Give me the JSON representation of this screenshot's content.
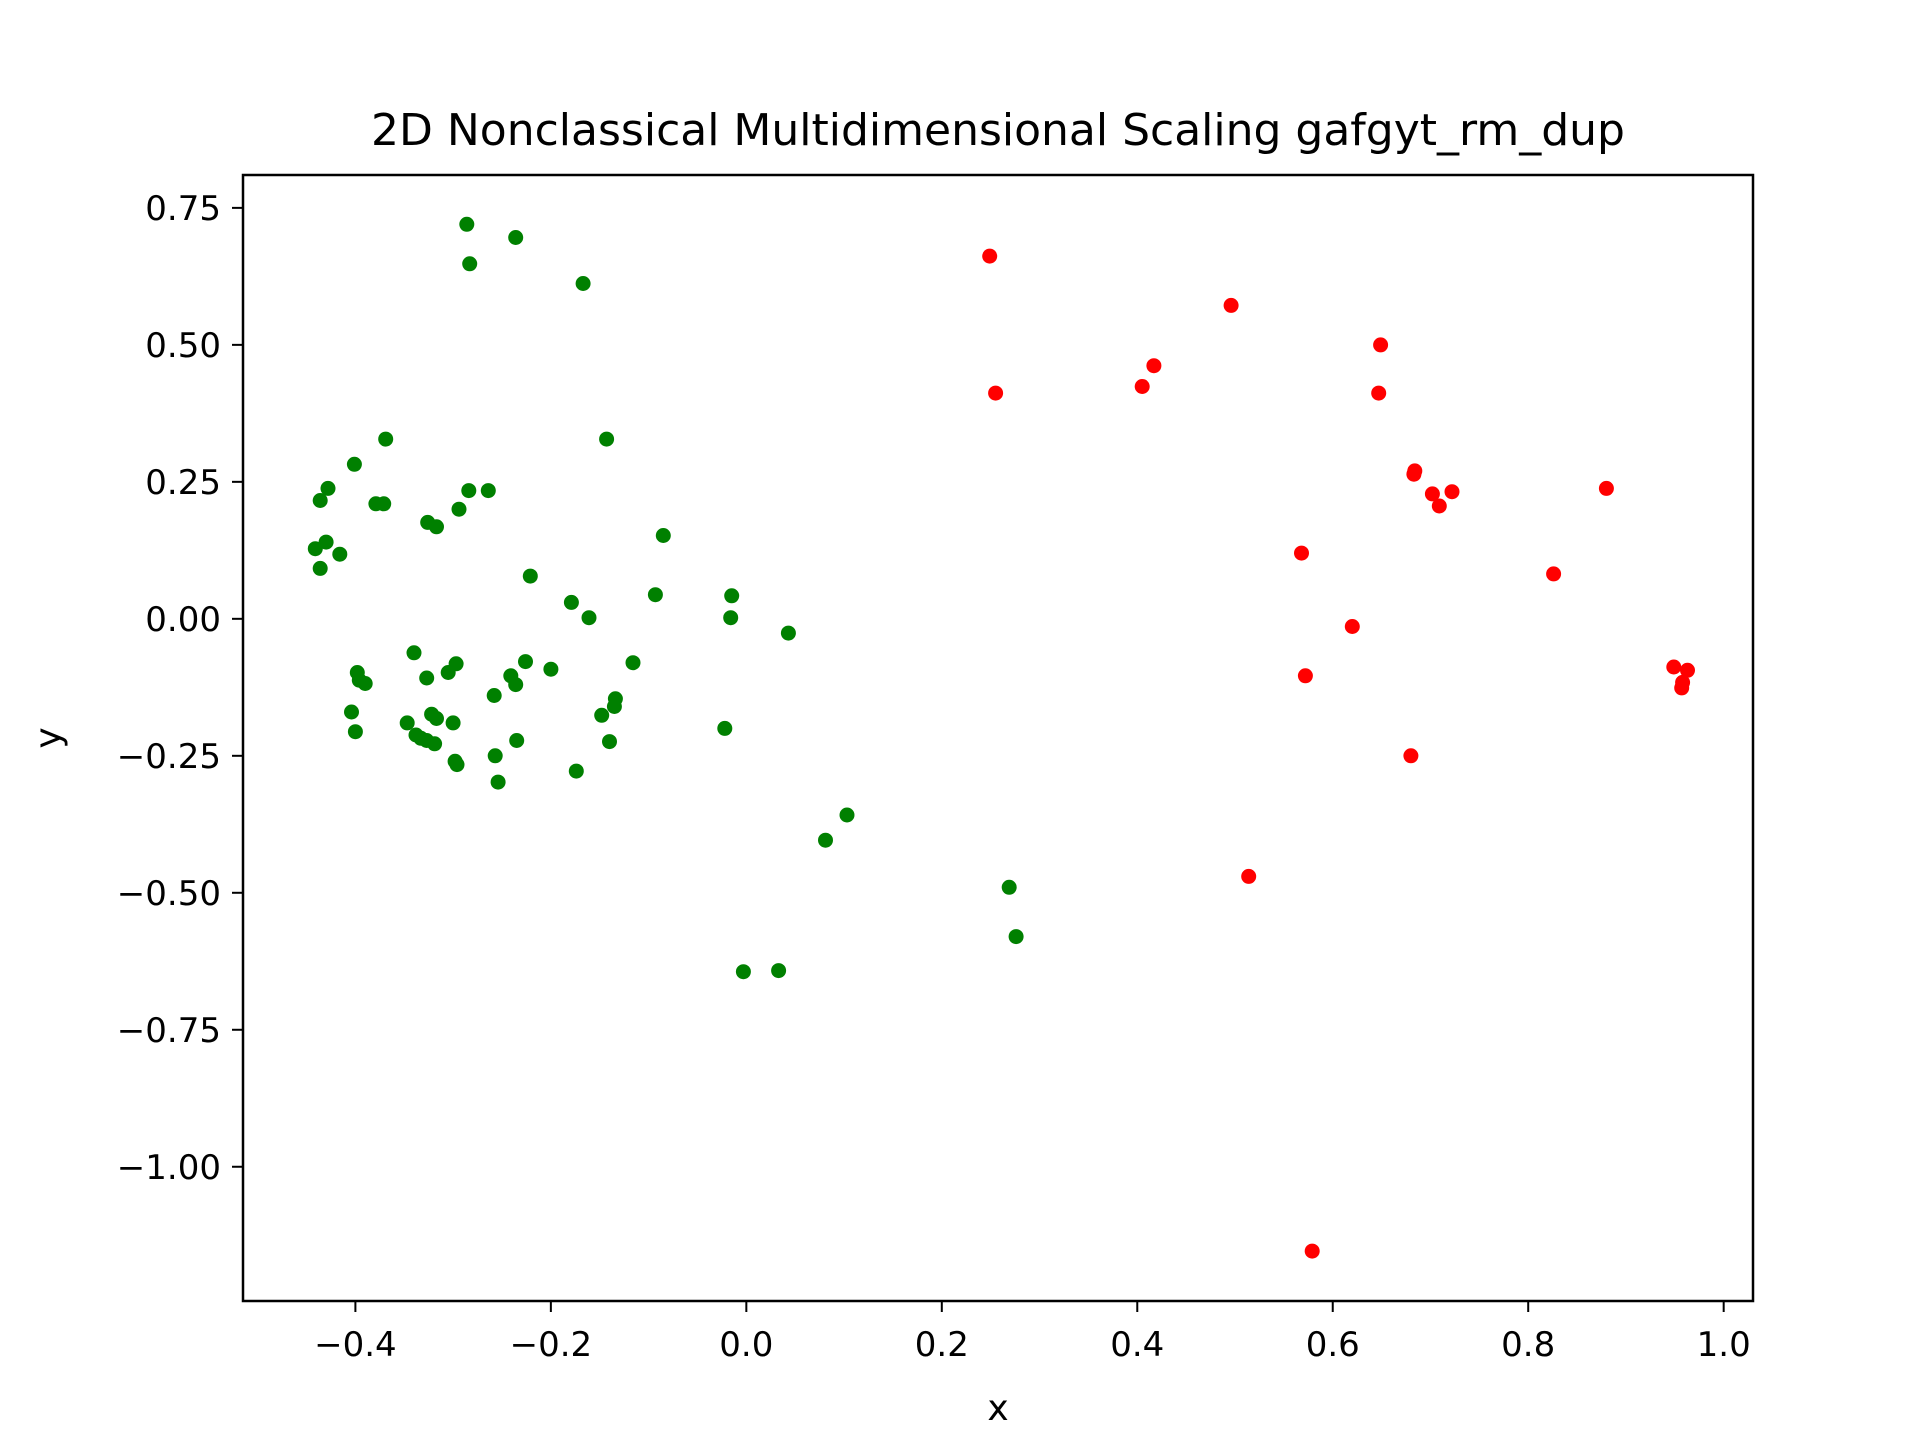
{
  "chart_data": {
    "type": "scatter",
    "title": "2D Nonclassical Multidimensional Scaling gafgyt_rm_dup",
    "xlabel": "x",
    "ylabel": "y",
    "xlim": [
      -0.515,
      1.03
    ],
    "ylim": [
      -1.245,
      0.81
    ],
    "xticks": [
      -0.4,
      -0.2,
      0.0,
      0.2,
      0.4,
      0.6,
      0.8,
      1.0
    ],
    "xtick_labels": [
      "−0.4",
      "−0.2",
      "0.0",
      "0.2",
      "0.4",
      "0.6",
      "0.8",
      "1.0"
    ],
    "yticks": [
      0.75,
      0.5,
      0.25,
      0.0,
      -0.25,
      -0.5,
      -0.75,
      -1.0
    ],
    "ytick_labels": [
      "0.75",
      "0.50",
      "0.25",
      "0.00",
      "−0.25",
      "−0.50",
      "−0.75",
      "−1.00"
    ],
    "grid": false,
    "series": [
      {
        "color": "#008000",
        "points": [
          [
            -0.286,
            0.72
          ],
          [
            -0.236,
            0.696
          ],
          [
            -0.283,
            0.648
          ],
          [
            -0.167,
            0.612
          ],
          [
            -0.369,
            0.328
          ],
          [
            -0.143,
            0.328
          ],
          [
            -0.401,
            0.282
          ],
          [
            -0.428,
            0.238
          ],
          [
            -0.436,
            0.216
          ],
          [
            -0.379,
            0.21
          ],
          [
            -0.371,
            0.21
          ],
          [
            -0.284,
            0.234
          ],
          [
            -0.264,
            0.234
          ],
          [
            -0.326,
            0.176
          ],
          [
            -0.317,
            0.168
          ],
          [
            -0.294,
            0.2
          ],
          [
            -0.43,
            0.14
          ],
          [
            -0.441,
            0.128
          ],
          [
            -0.416,
            0.118
          ],
          [
            -0.436,
            0.092
          ],
          [
            -0.085,
            0.152
          ],
          [
            -0.221,
            0.078
          ],
          [
            -0.179,
            0.03
          ],
          [
            -0.161,
            0.002
          ],
          [
            -0.093,
            0.044
          ],
          [
            -0.015,
            0.042
          ],
          [
            -0.016,
            0.002
          ],
          [
            0.043,
            -0.026
          ],
          [
            -0.34,
            -0.062
          ],
          [
            -0.297,
            -0.082
          ],
          [
            -0.305,
            -0.098
          ],
          [
            -0.327,
            -0.108
          ],
          [
            -0.398,
            -0.098
          ],
          [
            -0.396,
            -0.112
          ],
          [
            -0.39,
            -0.118
          ],
          [
            -0.226,
            -0.078
          ],
          [
            -0.2,
            -0.092
          ],
          [
            -0.241,
            -0.104
          ],
          [
            -0.236,
            -0.12
          ],
          [
            -0.116,
            -0.08
          ],
          [
            -0.134,
            -0.146
          ],
          [
            -0.135,
            -0.16
          ],
          [
            -0.148,
            -0.176
          ],
          [
            -0.258,
            -0.14
          ],
          [
            -0.404,
            -0.17
          ],
          [
            -0.4,
            -0.206
          ],
          [
            -0.347,
            -0.19
          ],
          [
            -0.322,
            -0.174
          ],
          [
            -0.317,
            -0.182
          ],
          [
            -0.3,
            -0.19
          ],
          [
            -0.338,
            -0.212
          ],
          [
            -0.333,
            -0.218
          ],
          [
            -0.327,
            -0.222
          ],
          [
            -0.319,
            -0.228
          ],
          [
            -0.235,
            -0.222
          ],
          [
            -0.14,
            -0.224
          ],
          [
            -0.022,
            -0.2
          ],
          [
            -0.257,
            -0.25
          ],
          [
            -0.298,
            -0.26
          ],
          [
            -0.296,
            -0.266
          ],
          [
            -0.174,
            -0.278
          ],
          [
            -0.254,
            -0.298
          ],
          [
            0.103,
            -0.358
          ],
          [
            0.081,
            -0.404
          ],
          [
            0.269,
            -0.49
          ],
          [
            0.276,
            -0.58
          ],
          [
            -0.003,
            -0.644
          ],
          [
            0.033,
            -0.642
          ]
        ]
      },
      {
        "color": "#ff0000",
        "points": [
          [
            0.249,
            0.662
          ],
          [
            0.255,
            0.412
          ],
          [
            0.496,
            0.572
          ],
          [
            0.649,
            0.5
          ],
          [
            0.417,
            0.462
          ],
          [
            0.405,
            0.424
          ],
          [
            0.647,
            0.412
          ],
          [
            0.684,
            0.27
          ],
          [
            0.683,
            0.264
          ],
          [
            0.702,
            0.228
          ],
          [
            0.709,
            0.206
          ],
          [
            0.722,
            0.232
          ],
          [
            0.88,
            0.238
          ],
          [
            0.568,
            0.12
          ],
          [
            0.826,
            0.082
          ],
          [
            0.62,
            -0.014
          ],
          [
            0.572,
            -0.104
          ],
          [
            0.949,
            -0.088
          ],
          [
            0.963,
            -0.094
          ],
          [
            0.958,
            -0.116
          ],
          [
            0.957,
            -0.126
          ],
          [
            0.68,
            -0.25
          ],
          [
            0.514,
            -0.47
          ],
          [
            0.579,
            -1.154
          ]
        ]
      }
    ]
  }
}
